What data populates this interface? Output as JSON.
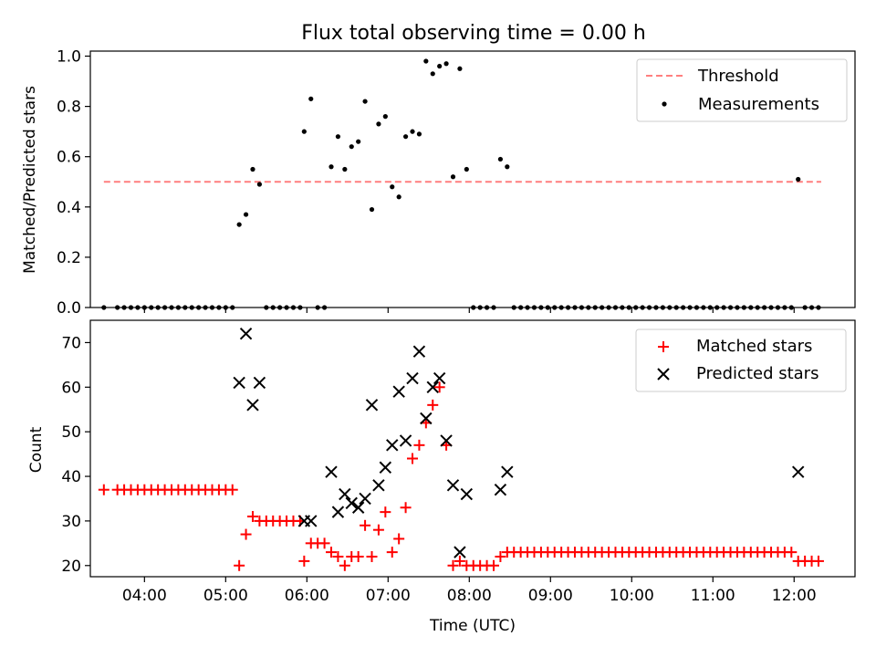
{
  "title": "Flux total observing time = 0.00 h",
  "chart_data": [
    {
      "type": "scatter",
      "panel": "top",
      "ylabel": "Matched/Predicted stars",
      "ylim": [
        0,
        1.02
      ],
      "yticks": [
        0.0,
        0.2,
        0.4,
        0.6,
        0.8,
        1.0
      ],
      "ytick_labels": [
        "0.0",
        "0.2",
        "0.4",
        "0.6",
        "0.8",
        "1.0"
      ],
      "legend_position": "top-right",
      "threshold": {
        "name": "Threshold",
        "y": 0.5,
        "x_range": [
          "03:30",
          "12:20"
        ],
        "color": "#ff7f7f"
      },
      "series": [
        {
          "name": "Measurements",
          "color": "#000000",
          "points": [
            [
              "03:30",
              0
            ],
            [
              "03:40",
              0
            ],
            [
              "03:45",
              0
            ],
            [
              "03:50",
              0
            ],
            [
              "03:55",
              0
            ],
            [
              "04:00",
              0
            ],
            [
              "04:05",
              0
            ],
            [
              "04:10",
              0
            ],
            [
              "04:15",
              0
            ],
            [
              "04:20",
              0
            ],
            [
              "04:25",
              0
            ],
            [
              "04:30",
              0
            ],
            [
              "04:35",
              0
            ],
            [
              "04:40",
              0
            ],
            [
              "04:45",
              0
            ],
            [
              "04:50",
              0
            ],
            [
              "04:55",
              0
            ],
            [
              "05:00",
              0
            ],
            [
              "05:05",
              0
            ],
            [
              "05:10",
              0.33
            ],
            [
              "05:15",
              0.37
            ],
            [
              "05:20",
              0.55
            ],
            [
              "05:25",
              0.49
            ],
            [
              "05:30",
              0
            ],
            [
              "05:35",
              0
            ],
            [
              "05:40",
              0
            ],
            [
              "05:45",
              0
            ],
            [
              "05:50",
              0
            ],
            [
              "05:55",
              0
            ],
            [
              "05:58",
              0.7
            ],
            [
              "06:03",
              0.83
            ],
            [
              "06:08",
              0
            ],
            [
              "06:13",
              0
            ],
            [
              "06:18",
              0.56
            ],
            [
              "06:23",
              0.68
            ],
            [
              "06:28",
              0.55
            ],
            [
              "06:33",
              0.64
            ],
            [
              "06:38",
              0.66
            ],
            [
              "06:43",
              0.82
            ],
            [
              "06:48",
              0.39
            ],
            [
              "06:53",
              0.73
            ],
            [
              "06:58",
              0.76
            ],
            [
              "07:03",
              0.48
            ],
            [
              "07:08",
              0.44
            ],
            [
              "07:13",
              0.68
            ],
            [
              "07:18",
              0.7
            ],
            [
              "07:23",
              0.69
            ],
            [
              "07:28",
              0.98
            ],
            [
              "07:33",
              0.93
            ],
            [
              "07:38",
              0.96
            ],
            [
              "07:43",
              0.97
            ],
            [
              "07:48",
              0.52
            ],
            [
              "07:53",
              0.95
            ],
            [
              "07:58",
              0.55
            ],
            [
              "08:03",
              0
            ],
            [
              "08:08",
              0
            ],
            [
              "08:13",
              0
            ],
            [
              "08:18",
              0
            ],
            [
              "08:23",
              0.59
            ],
            [
              "08:28",
              0.56
            ],
            [
              "08:33",
              0
            ],
            [
              "08:38",
              0
            ],
            [
              "08:43",
              0
            ],
            [
              "08:48",
              0
            ],
            [
              "08:53",
              0
            ],
            [
              "08:58",
              0
            ],
            [
              "09:03",
              0
            ],
            [
              "09:08",
              0
            ],
            [
              "09:13",
              0
            ],
            [
              "09:18",
              0
            ],
            [
              "09:23",
              0
            ],
            [
              "09:28",
              0
            ],
            [
              "09:33",
              0
            ],
            [
              "09:38",
              0
            ],
            [
              "09:43",
              0
            ],
            [
              "09:48",
              0
            ],
            [
              "09:53",
              0
            ],
            [
              "09:58",
              0
            ],
            [
              "10:03",
              0
            ],
            [
              "10:08",
              0
            ],
            [
              "10:13",
              0
            ],
            [
              "10:18",
              0
            ],
            [
              "10:23",
              0
            ],
            [
              "10:28",
              0
            ],
            [
              "10:33",
              0
            ],
            [
              "10:38",
              0
            ],
            [
              "10:43",
              0
            ],
            [
              "10:48",
              0
            ],
            [
              "10:53",
              0
            ],
            [
              "10:58",
              0
            ],
            [
              "11:03",
              0
            ],
            [
              "11:08",
              0
            ],
            [
              "11:13",
              0
            ],
            [
              "11:18",
              0
            ],
            [
              "11:23",
              0
            ],
            [
              "11:28",
              0
            ],
            [
              "11:33",
              0
            ],
            [
              "11:38",
              0
            ],
            [
              "11:43",
              0
            ],
            [
              "11:48",
              0
            ],
            [
              "11:53",
              0
            ],
            [
              "11:58",
              0
            ],
            [
              "12:03",
              0.51
            ],
            [
              "12:08",
              0
            ],
            [
              "12:13",
              0
            ],
            [
              "12:18",
              0
            ]
          ]
        }
      ]
    },
    {
      "type": "scatter",
      "panel": "bottom",
      "xlabel": "Time (UTC)",
      "ylabel": "Count",
      "ylim": [
        17.5,
        75
      ],
      "yticks": [
        20,
        30,
        40,
        50,
        60,
        70
      ],
      "ytick_labels": [
        "20",
        "30",
        "40",
        "50",
        "60",
        "70"
      ],
      "xlim": [
        "03:20",
        "12:45"
      ],
      "xticks": [
        "04:00",
        "05:00",
        "06:00",
        "07:00",
        "08:00",
        "09:00",
        "10:00",
        "11:00",
        "12:00"
      ],
      "xtick_labels": [
        "04:00",
        "05:00",
        "06:00",
        "07:00",
        "08:00",
        "09:00",
        "10:00",
        "11:00",
        "12:00"
      ],
      "legend_position": "top-right",
      "series": [
        {
          "name": "Matched stars",
          "color": "#ff0000",
          "marker": "plus",
          "points": [
            [
              "03:30",
              37
            ],
            [
              "03:40",
              37
            ],
            [
              "03:45",
              37
            ],
            [
              "03:50",
              37
            ],
            [
              "03:55",
              37
            ],
            [
              "04:00",
              37
            ],
            [
              "04:05",
              37
            ],
            [
              "04:10",
              37
            ],
            [
              "04:15",
              37
            ],
            [
              "04:20",
              37
            ],
            [
              "04:25",
              37
            ],
            [
              "04:30",
              37
            ],
            [
              "04:35",
              37
            ],
            [
              "04:40",
              37
            ],
            [
              "04:45",
              37
            ],
            [
              "04:50",
              37
            ],
            [
              "04:55",
              37
            ],
            [
              "05:00",
              37
            ],
            [
              "05:05",
              37
            ],
            [
              "05:10",
              20
            ],
            [
              "05:15",
              27
            ],
            [
              "05:20",
              31
            ],
            [
              "05:25",
              30
            ],
            [
              "05:30",
              30
            ],
            [
              "05:35",
              30
            ],
            [
              "05:40",
              30
            ],
            [
              "05:45",
              30
            ],
            [
              "05:50",
              30
            ],
            [
              "05:55",
              30
            ],
            [
              "05:58",
              21
            ],
            [
              "06:03",
              25
            ],
            [
              "06:08",
              25
            ],
            [
              "06:13",
              25
            ],
            [
              "06:18",
              23
            ],
            [
              "06:23",
              22
            ],
            [
              "06:28",
              20
            ],
            [
              "06:33",
              22
            ],
            [
              "06:38",
              22
            ],
            [
              "06:43",
              29
            ],
            [
              "06:48",
              22
            ],
            [
              "06:53",
              28
            ],
            [
              "06:58",
              32
            ],
            [
              "07:03",
              23
            ],
            [
              "07:08",
              26
            ],
            [
              "07:13",
              33
            ],
            [
              "07:18",
              44
            ],
            [
              "07:23",
              47
            ],
            [
              "07:28",
              52
            ],
            [
              "07:33",
              56
            ],
            [
              "07:38",
              60
            ],
            [
              "07:43",
              47
            ],
            [
              "07:48",
              20
            ],
            [
              "07:53",
              21
            ],
            [
              "07:58",
              20
            ],
            [
              "08:03",
              20
            ],
            [
              "08:08",
              20
            ],
            [
              "08:13",
              20
            ],
            [
              "08:18",
              20
            ],
            [
              "08:23",
              22
            ],
            [
              "08:28",
              23
            ],
            [
              "08:33",
              23
            ],
            [
              "08:38",
              23
            ],
            [
              "08:43",
              23
            ],
            [
              "08:48",
              23
            ],
            [
              "08:53",
              23
            ],
            [
              "08:58",
              23
            ],
            [
              "09:03",
              23
            ],
            [
              "09:08",
              23
            ],
            [
              "09:13",
              23
            ],
            [
              "09:18",
              23
            ],
            [
              "09:23",
              23
            ],
            [
              "09:28",
              23
            ],
            [
              "09:33",
              23
            ],
            [
              "09:38",
              23
            ],
            [
              "09:43",
              23
            ],
            [
              "09:48",
              23
            ],
            [
              "09:53",
              23
            ],
            [
              "09:58",
              23
            ],
            [
              "10:03",
              23
            ],
            [
              "10:08",
              23
            ],
            [
              "10:13",
              23
            ],
            [
              "10:18",
              23
            ],
            [
              "10:23",
              23
            ],
            [
              "10:28",
              23
            ],
            [
              "10:33",
              23
            ],
            [
              "10:38",
              23
            ],
            [
              "10:43",
              23
            ],
            [
              "10:48",
              23
            ],
            [
              "10:53",
              23
            ],
            [
              "10:58",
              23
            ],
            [
              "11:03",
              23
            ],
            [
              "11:08",
              23
            ],
            [
              "11:13",
              23
            ],
            [
              "11:18",
              23
            ],
            [
              "11:23",
              23
            ],
            [
              "11:28",
              23
            ],
            [
              "11:33",
              23
            ],
            [
              "11:38",
              23
            ],
            [
              "11:43",
              23
            ],
            [
              "11:48",
              23
            ],
            [
              "11:53",
              23
            ],
            [
              "11:58",
              23
            ],
            [
              "12:03",
              21
            ],
            [
              "12:08",
              21
            ],
            [
              "12:13",
              21
            ],
            [
              "12:18",
              21
            ]
          ]
        },
        {
          "name": "Predicted stars",
          "color": "#000000",
          "marker": "x",
          "points": [
            [
              "05:10",
              61
            ],
            [
              "05:15",
              72
            ],
            [
              "05:20",
              56
            ],
            [
              "05:25",
              61
            ],
            [
              "05:58",
              30
            ],
            [
              "06:03",
              30
            ],
            [
              "06:18",
              41
            ],
            [
              "06:23",
              32
            ],
            [
              "06:28",
              36
            ],
            [
              "06:33",
              34
            ],
            [
              "06:38",
              33
            ],
            [
              "06:43",
              35
            ],
            [
              "06:48",
              56
            ],
            [
              "06:53",
              38
            ],
            [
              "06:58",
              42
            ],
            [
              "07:03",
              47
            ],
            [
              "07:08",
              59
            ],
            [
              "07:13",
              48
            ],
            [
              "07:18",
              62
            ],
            [
              "07:23",
              68
            ],
            [
              "07:28",
              53
            ],
            [
              "07:33",
              60
            ],
            [
              "07:38",
              62
            ],
            [
              "07:43",
              48
            ],
            [
              "07:48",
              38
            ],
            [
              "07:53",
              23
            ],
            [
              "07:58",
              36
            ],
            [
              "08:23",
              37
            ],
            [
              "08:28",
              41
            ],
            [
              "12:03",
              41
            ]
          ]
        }
      ]
    }
  ]
}
